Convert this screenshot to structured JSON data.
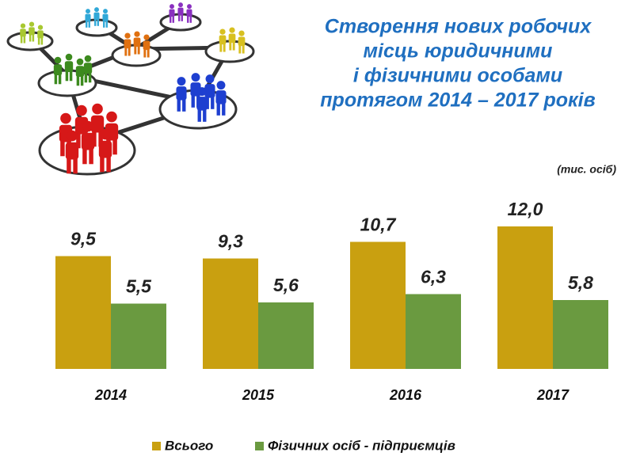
{
  "chart_data": {
    "type": "bar",
    "title": [
      "Створення нових робочих",
      "місць юридичними",
      "і фізичними особами",
      "протягом 2014 – 2017 років"
    ],
    "unit": "(тис. осіб)",
    "categories": [
      "2014",
      "2015",
      "2016",
      "2017"
    ],
    "series": [
      {
        "name": "Всього",
        "color": "#c9a010",
        "values": [
          9.5,
          9.3,
          10.7,
          12.0
        ],
        "value_labels": [
          "9,5",
          "9,3",
          "10,7",
          "12,0"
        ]
      },
      {
        "name": "Фізичних осіб - підприємців",
        "color": "#6a9a40",
        "values": [
          5.5,
          5.6,
          6.3,
          5.8
        ],
        "value_labels": [
          "5,5",
          "5,6",
          "6,3",
          "5,8"
        ]
      }
    ],
    "legend": "bottom"
  }
}
